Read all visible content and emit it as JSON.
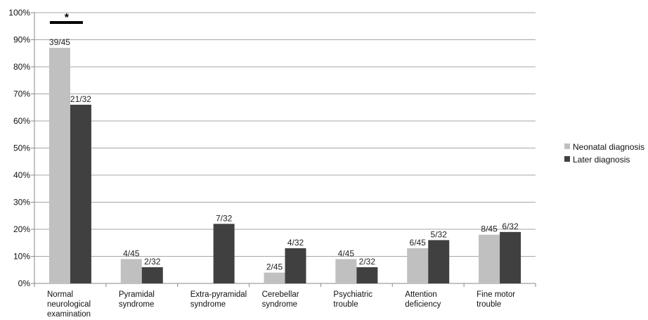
{
  "chart_data": {
    "type": "bar",
    "categories": [
      [
        "Normal",
        "neurological",
        "examination"
      ],
      [
        "Pyramidal",
        "syndrome"
      ],
      [
        "Extra-pyramidal",
        "syndrome"
      ],
      [
        "Cerebellar",
        "syndrome"
      ],
      [
        "Psychiatric",
        "trouble"
      ],
      [
        "Attention",
        "deficiency"
      ],
      [
        "Fine motor",
        "trouble"
      ]
    ],
    "series": [
      {
        "name": "Neonatal diagnosis",
        "color": "#c0c0c0",
        "values": [
          87,
          9,
          0,
          4,
          9,
          13,
          18
        ],
        "labels": [
          "39/45",
          "4/45",
          "",
          "2/45",
          "4/45",
          "6/45",
          "8/45"
        ]
      },
      {
        "name": "Later diagnosis",
        "color": "#404040",
        "values": [
          66,
          6,
          22,
          13,
          6,
          16,
          19
        ],
        "labels": [
          "21/32",
          "2/32",
          "7/32",
          "4/32",
          "2/32",
          "5/32",
          "6/32"
        ]
      }
    ],
    "ylim": [
      0,
      100
    ],
    "yticks": [
      "0%",
      "10%",
      "20%",
      "30%",
      "40%",
      "50%",
      "60%",
      "70%",
      "80%",
      "90%",
      "100%"
    ],
    "grid": true,
    "legend_position": "right",
    "annotations": [
      {
        "text": "*",
        "category_index": 0
      }
    ]
  }
}
